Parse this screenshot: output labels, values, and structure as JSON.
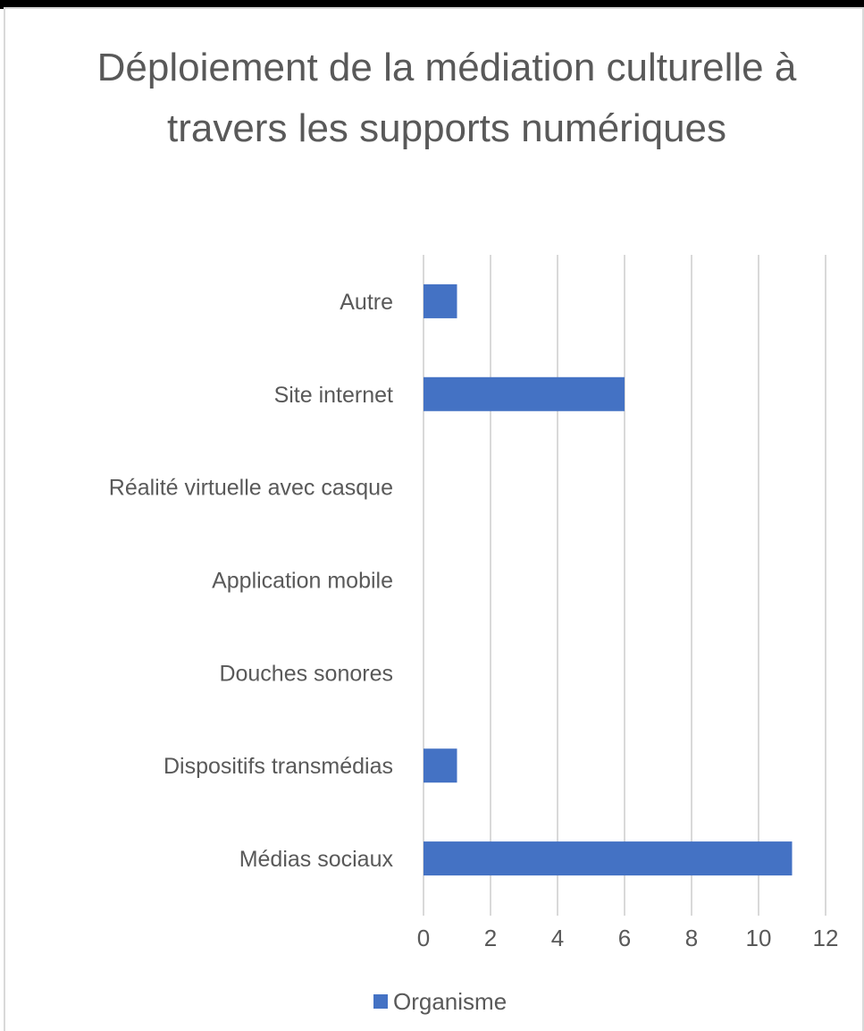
{
  "chart_data": {
    "type": "bar",
    "orientation": "horizontal",
    "title": "Déploiement de la médiation culturelle à travers les supports numériques",
    "categories": [
      "Médias sociaux",
      "Dispositifs transmédias",
      "Douches sonores",
      "Application mobile",
      "Réalité virtuelle avec casque",
      "Site internet",
      "Autre"
    ],
    "series": [
      {
        "name": "Organisme",
        "values": [
          11,
          1,
          0,
          0,
          0,
          6,
          1
        ],
        "color": "#4472c4"
      }
    ],
    "xlim": [
      0,
      12
    ],
    "xticks": [
      "0",
      "2",
      "4",
      "6",
      "8",
      "10",
      "12"
    ],
    "grid": true,
    "legend": "bottom"
  }
}
